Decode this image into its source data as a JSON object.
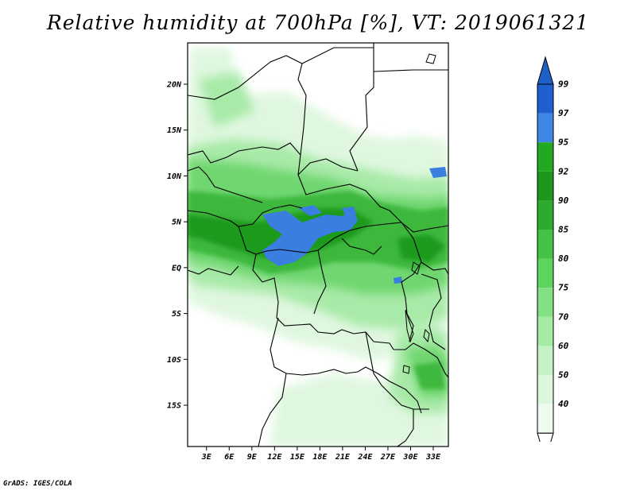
{
  "title": "Relative humidity at 700hPa [%], VT: 2019061321",
  "credit": "GrADS: IGES/COLA",
  "map": {
    "lat_labels": [
      "20N",
      "15N",
      "10N",
      "5N",
      "EQ",
      "5S",
      "10S",
      "15S"
    ],
    "lat_values": [
      20,
      15,
      10,
      5,
      0,
      -5,
      -10,
      -15
    ],
    "lon_labels": [
      "3E",
      "6E",
      "9E",
      "12E",
      "15E",
      "18E",
      "21E",
      "24E",
      "27E",
      "30E",
      "33E"
    ],
    "lon_values": [
      3,
      6,
      9,
      12,
      15,
      18,
      21,
      24,
      27,
      30,
      33
    ],
    "lon_range": [
      0.5,
      35
    ],
    "lat_range": [
      -19.5,
      24.5
    ]
  },
  "colorbar": {
    "levels": [
      "99",
      "97",
      "95",
      "92",
      "90",
      "85",
      "80",
      "75",
      "70",
      "60",
      "50",
      "40"
    ],
    "colors": [
      "#1f5fcf",
      "#3f86e6",
      "#22a822",
      "#1e961e",
      "#2cab2c",
      "#44c244",
      "#5ed45e",
      "#83e083",
      "#a5eaa5",
      "#c4f2c4",
      "#dcf7dc",
      "#eefbee"
    ],
    "top_color": "#1e5fc8",
    "bottom_color": "#ffffff"
  },
  "fields": {
    "rh_95_plus": "#3a7ee0",
    "rh_90": "#1f9a1f",
    "rh_85": "#3cb83c",
    "rh_75": "#6fd66f",
    "rh_60": "#a8eaa8",
    "rh_40": "#dff7df"
  }
}
